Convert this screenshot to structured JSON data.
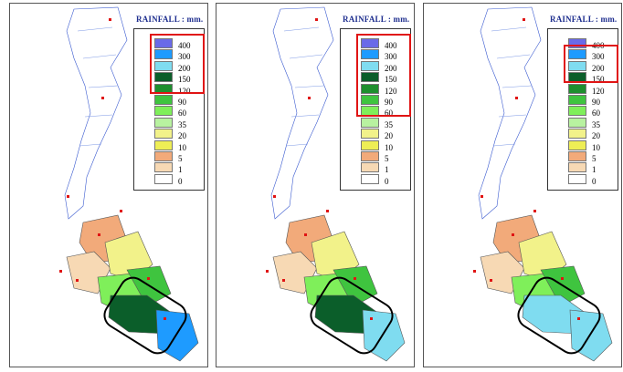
{
  "legend": {
    "title": "RAINFALL : mm.",
    "levels": [
      {
        "label": "400",
        "color": "#6a6ae8"
      },
      {
        "label": "300",
        "color": "#1e9bff"
      },
      {
        "label": "200",
        "color": "#7fdcf0"
      },
      {
        "label": "150",
        "color": "#0b5e2a"
      },
      {
        "label": "120",
        "color": "#1e8f2e"
      },
      {
        "label": "90",
        "color": "#3fc43f"
      },
      {
        "label": "60",
        "color": "#7fef5a"
      },
      {
        "label": "35",
        "color": "#b8f2a0"
      },
      {
        "label": "20",
        "color": "#f2f28a"
      },
      {
        "label": "10",
        "color": "#eeee55"
      },
      {
        "label": "5",
        "color": "#f2aa7a"
      },
      {
        "label": "1",
        "color": "#f7d9b4"
      },
      {
        "label": "0",
        "color": "#ffffff"
      }
    ]
  },
  "panels": [
    {
      "id": "left",
      "highlight": "120-400",
      "south_tip_color": "#1e9bff",
      "southeast_color": "#0b5e2a"
    },
    {
      "id": "middle",
      "highlight": "60-400",
      "south_tip_color": "#7fdcf0",
      "southeast_color": "#0b5e2a"
    },
    {
      "id": "right",
      "highlight": "150-300",
      "south_tip_color": "#7fdcf0",
      "southeast_color": "#7fdcf0"
    }
  ]
}
